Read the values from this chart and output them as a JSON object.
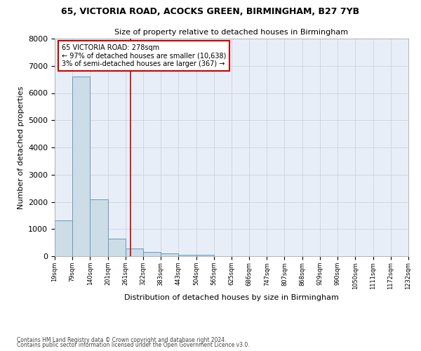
{
  "title1": "65, VICTORIA ROAD, ACOCKS GREEN, BIRMINGHAM, B27 7YB",
  "title2": "Size of property relative to detached houses in Birmingham",
  "xlabel": "Distribution of detached houses by size in Birmingham",
  "ylabel": "Number of detached properties",
  "bar_color": "#ccdde8",
  "bar_edge_color": "#6699bb",
  "grid_color": "#cccccc",
  "bg_color": "#e8eef8",
  "annotation_line1": "65 VICTORIA ROAD: 278sqm",
  "annotation_line2": "← 97% of detached houses are smaller (10,638)",
  "annotation_line3": "3% of semi-detached houses are larger (367) →",
  "property_size": 278,
  "red_line_color": "#cc0000",
  "annotation_box_color": "#cc0000",
  "bin_edges": [
    19,
    79,
    140,
    201,
    261,
    322,
    383,
    443,
    504,
    565,
    625,
    686,
    747,
    807,
    868,
    929,
    990,
    1050,
    1111,
    1172,
    1232
  ],
  "bin_counts": [
    1310,
    6600,
    2080,
    650,
    280,
    150,
    100,
    60,
    60,
    0,
    0,
    0,
    0,
    0,
    0,
    0,
    0,
    0,
    0,
    0
  ],
  "footnote1": "Contains HM Land Registry data © Crown copyright and database right 2024.",
  "footnote2": "Contains public sector information licensed under the Open Government Licence v3.0."
}
